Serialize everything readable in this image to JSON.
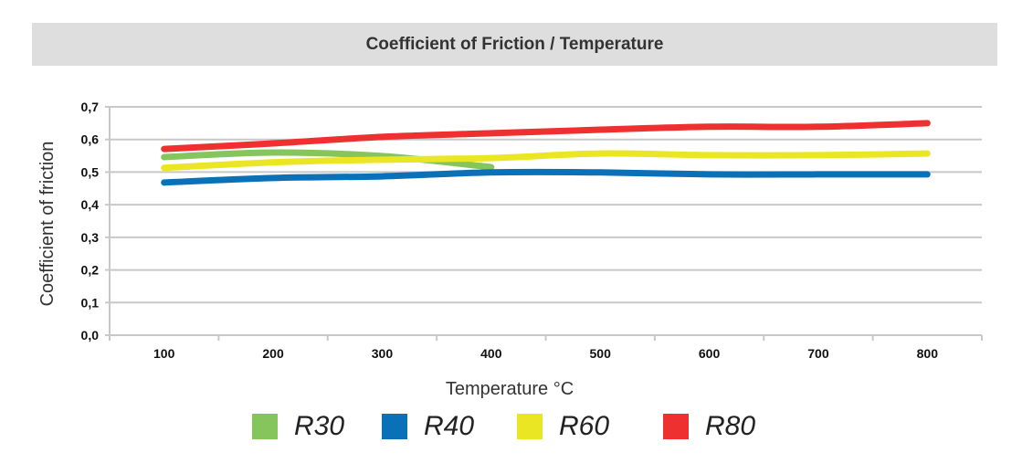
{
  "chart_data": {
    "type": "line",
    "title": "Coefficient of Friction / Temperature",
    "xlabel": "Temperature °C",
    "ylabel": "Coefficient of friction",
    "categories": [
      "100",
      "200",
      "300",
      "400",
      "500",
      "600",
      "700",
      "800"
    ],
    "yticks": [
      "0,0",
      "0,1",
      "0,2",
      "0,3",
      "0,4",
      "0,5",
      "0,6",
      "0,7"
    ],
    "ylim": [
      0,
      0.7
    ],
    "grid": true,
    "legend_position": "bottom",
    "series": [
      {
        "name": "R30",
        "color": "#86c45c",
        "values": [
          0.546,
          0.56,
          0.549,
          0.515,
          null,
          null,
          null,
          null
        ]
      },
      {
        "name": "R40",
        "color": "#0a70b8",
        "values": [
          0.468,
          0.482,
          0.487,
          0.499,
          0.499,
          0.493,
          0.493,
          0.493
        ]
      },
      {
        "name": "R60",
        "color": "#ebe624",
        "values": [
          0.513,
          0.53,
          0.538,
          0.543,
          0.557,
          0.552,
          0.552,
          0.557
        ]
      },
      {
        "name": "R80",
        "color": "#ee3030",
        "values": [
          0.571,
          0.588,
          0.608,
          0.619,
          0.63,
          0.639,
          0.639,
          0.65
        ]
      }
    ]
  }
}
